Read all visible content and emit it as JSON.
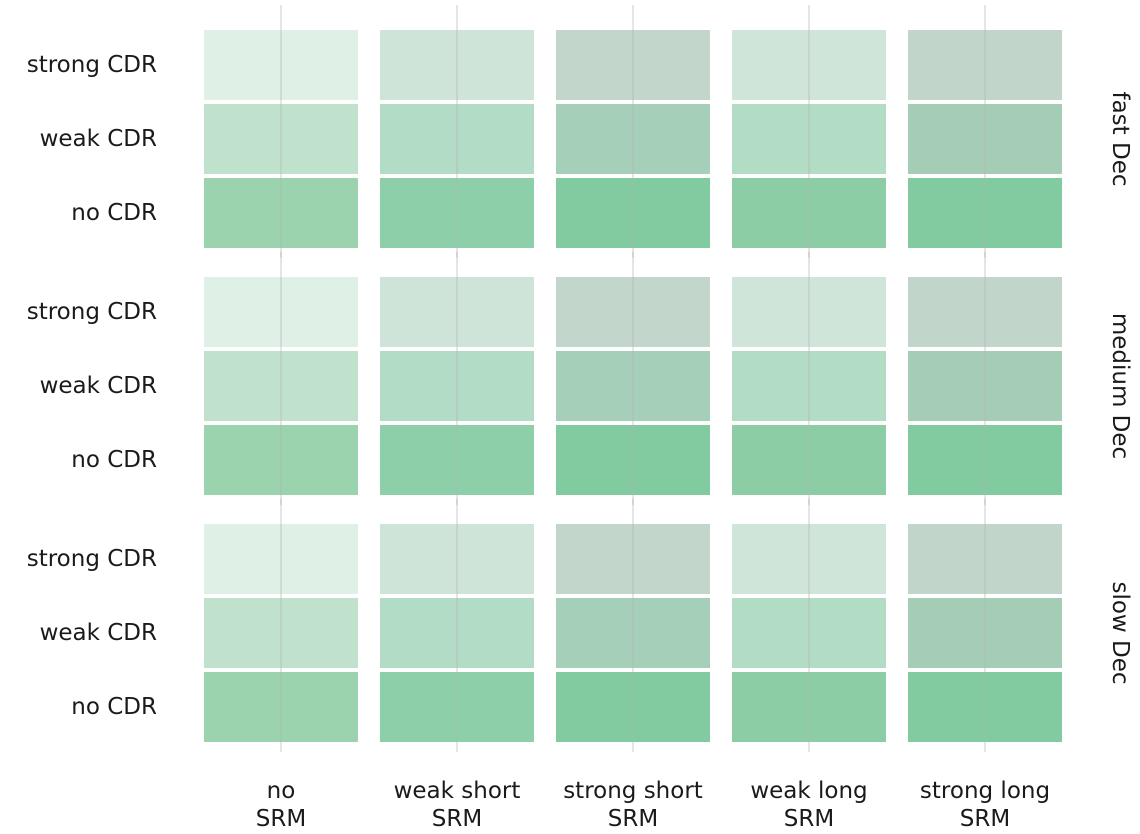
{
  "chart_data": {
    "type": "tile",
    "x_categories": [
      "no\nSRM",
      "weak short\nSRM",
      "strong short\nSRM",
      "weak long\nSRM",
      "strong long\nSRM"
    ],
    "y_categories": [
      "strong CDR",
      "weak CDR",
      "no CDR"
    ],
    "facets": [
      {
        "name": "fast Dec",
        "colors": [
          [
            "#dff0e7",
            "#cfe4d9",
            "#c2d6cb",
            "#d0e5d9",
            "#c2d5cb"
          ],
          [
            "#c0e2cd",
            "#b2dcc6",
            "#a5cfb8",
            "#b2dcc4",
            "#a5cdb6"
          ],
          [
            "#9ad3ae",
            "#8ccfa8",
            "#82cba0",
            "#8ccda6",
            "#82cba0"
          ]
        ]
      },
      {
        "name": "medium Dec",
        "colors": [
          [
            "#dff0e7",
            "#cfe4d9",
            "#c2d6cb",
            "#d0e5d9",
            "#c2d5cb"
          ],
          [
            "#c0e2cd",
            "#b2dcc6",
            "#a5cfb8",
            "#b2dcc4",
            "#a5cdb6"
          ],
          [
            "#9ad3ae",
            "#8ccfa8",
            "#82cba0",
            "#8ccda6",
            "#82cba0"
          ]
        ]
      },
      {
        "name": "slow Dec",
        "colors": [
          [
            "#dff0e7",
            "#cfe4d9",
            "#c2d6cb",
            "#d0e5d9",
            "#c2d5cb"
          ],
          [
            "#c0e2cd",
            "#b2dcc6",
            "#a5cfb8",
            "#b2dcc4",
            "#a5cdb6"
          ],
          [
            "#9ad3ae",
            "#8ccfa8",
            "#82cba0",
            "#8ccda6",
            "#82cba0"
          ]
        ]
      }
    ],
    "grid": true
  }
}
